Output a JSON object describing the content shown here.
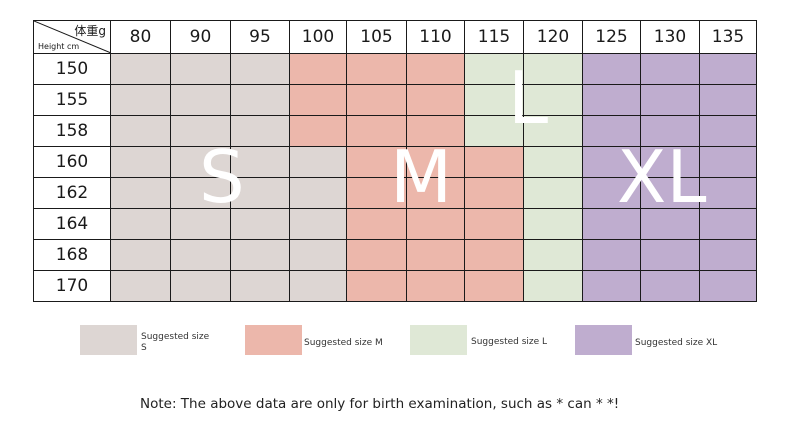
{
  "header": {
    "corner_weight": "体重g",
    "corner_height": "Height cm",
    "weights": [
      "80",
      "90",
      "95",
      "100",
      "105",
      "110",
      "115",
      "120",
      "125",
      "130",
      "135"
    ]
  },
  "rows": [
    {
      "height": "150",
      "sizes": [
        "S",
        "S",
        "S",
        "M",
        "M",
        "M",
        "L",
        "L",
        "XL",
        "XL",
        "XL"
      ]
    },
    {
      "height": "155",
      "sizes": [
        "S",
        "S",
        "S",
        "M",
        "M",
        "M",
        "L",
        "L",
        "XL",
        "XL",
        "XL"
      ]
    },
    {
      "height": "158",
      "sizes": [
        "S",
        "S",
        "S",
        "M",
        "M",
        "M",
        "L",
        "L",
        "XL",
        "XL",
        "XL"
      ]
    },
    {
      "height": "160",
      "sizes": [
        "S",
        "S",
        "S",
        "S",
        "M",
        "M",
        "M",
        "L",
        "XL",
        "XL",
        "XL"
      ]
    },
    {
      "height": "162",
      "sizes": [
        "S",
        "S",
        "S",
        "S",
        "M",
        "M",
        "M",
        "L",
        "XL",
        "XL",
        "XL"
      ]
    },
    {
      "height": "164",
      "sizes": [
        "S",
        "S",
        "S",
        "S",
        "M",
        "M",
        "M",
        "L",
        "XL",
        "XL",
        "XL"
      ]
    },
    {
      "height": "168",
      "sizes": [
        "S",
        "S",
        "S",
        "S",
        "M",
        "M",
        "M",
        "L",
        "XL",
        "XL",
        "XL"
      ]
    },
    {
      "height": "170",
      "sizes": [
        "S",
        "S",
        "S",
        "S",
        "M",
        "M",
        "M",
        "L",
        "XL",
        "XL",
        "XL"
      ]
    }
  ],
  "overlay_labels": {
    "S": "S",
    "M": "M",
    "L": "L",
    "XL": "XL"
  },
  "colors": {
    "S": "#ddd6d3",
    "M": "#ecb7ab",
    "L": "#dfe8d6",
    "XL": "#bfadcf"
  },
  "legend": [
    {
      "size": "S",
      "label_line1": "Suggested size",
      "label_line2": "S"
    },
    {
      "size": "M",
      "label_line1": "Suggested size M",
      "label_line2": ""
    },
    {
      "size": "L",
      "label_line1": "Suggested size L",
      "label_line2": ""
    },
    {
      "size": "XL",
      "label_line1": "Suggested size XL",
      "label_line2": ""
    }
  ],
  "note": "Note: The above data are only for birth examination, such as * can * *!"
}
